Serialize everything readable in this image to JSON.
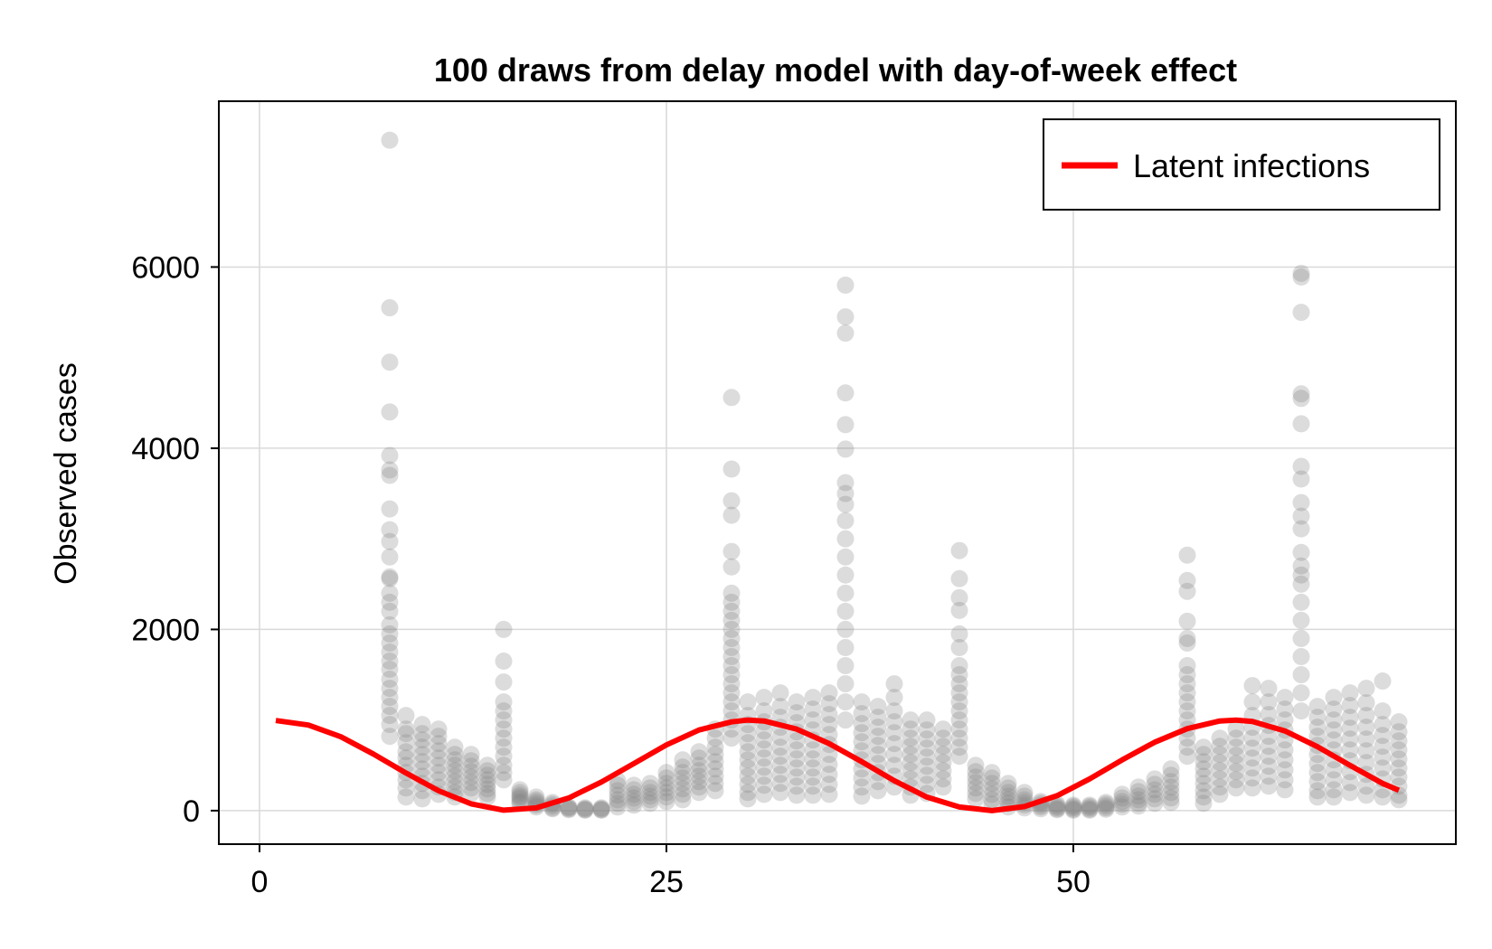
{
  "chart_data": {
    "type": "scatter",
    "title": "100 draws from delay model with day-of-week effect",
    "xlabel": "",
    "ylabel": "Observed cases",
    "xlim": [
      -2.5,
      73.5
    ],
    "ylim": [
      -370,
      7830
    ],
    "xticks": [
      0,
      25,
      50
    ],
    "yticks": [
      0,
      2000,
      4000,
      6000
    ],
    "xtick_labels": [
      "0",
      "25",
      "50"
    ],
    "ytick_labels": [
      "0",
      "2000",
      "4000",
      "6000"
    ],
    "grid": true,
    "legend": {
      "position": "top-right",
      "entries": [
        "Latent infections"
      ]
    },
    "colors": {
      "draws": "#808080",
      "latent": "#ff0000",
      "grid": "#d9d9d9",
      "frame": "#000000"
    },
    "series": [
      {
        "name": "Latent infections",
        "kind": "line",
        "x": [
          1,
          3,
          5,
          7,
          9,
          11,
          13,
          15,
          17,
          19,
          21,
          23,
          25,
          27,
          29,
          30,
          31,
          33,
          35,
          37,
          39,
          41,
          43,
          45,
          47,
          49,
          51,
          53,
          55,
          57,
          59,
          60,
          61,
          63,
          65,
          67,
          69,
          70
        ],
        "y": [
          995,
          945,
          815,
          625,
          415,
          220,
          75,
          5,
          30,
          140,
          315,
          520,
          725,
          890,
          980,
          1000,
          990,
          900,
          740,
          540,
          330,
          150,
          40,
          0,
          45,
          165,
          350,
          560,
          755,
          905,
          990,
          1000,
          985,
          880,
          705,
          500,
          300,
          225
        ]
      },
      {
        "kind": "scatter",
        "per_day": [
          {
            "day": 8,
            "values": [
              7400,
              5550,
              4950,
              4400,
              3920,
              3760,
              3700,
              3330,
              3100,
              2970,
              2800,
              2580,
              2560,
              2400,
              2300,
              2200,
              2050,
              1950,
              1850,
              1750,
              1650,
              1560,
              1450,
              1350,
              1250,
              1150,
              1050,
              950,
              820
            ]
          },
          {
            "day": 9,
            "values": [
              1050,
              900,
              850,
              750,
              650,
              580,
              500,
              420,
              340,
              250,
              150
            ]
          },
          {
            "day": 10,
            "values": [
              950,
              850,
              780,
              700,
              620,
              540,
              460,
              380,
              300,
              220,
              130
            ]
          },
          {
            "day": 11,
            "values": [
              900,
              820,
              740,
              660,
              580,
              500,
              420,
              340,
              260,
              180
            ]
          },
          {
            "day": 12,
            "values": [
              700,
              620,
              560,
              500,
              440,
              380,
              320,
              260,
              200,
              150
            ]
          },
          {
            "day": 13,
            "values": [
              620,
              550,
              490,
              430,
              370,
              310,
              250,
              190
            ]
          },
          {
            "day": 14,
            "values": [
              500,
              440,
              390,
              340,
              290,
              240,
              190,
              150
            ]
          },
          {
            "day": 15,
            "values": [
              2000,
              1650,
              1420,
              1200,
              1100,
              1000,
              900,
              800,
              700,
              600,
              500,
              420,
              340
            ]
          },
          {
            "day": 16,
            "values": [
              230,
              200,
              170,
              150,
              130,
              100,
              80
            ]
          },
          {
            "day": 17,
            "values": [
              150,
              120,
              100,
              80,
              60,
              40
            ]
          },
          {
            "day": 18,
            "values": [
              90,
              70,
              50,
              30,
              20
            ]
          },
          {
            "day": 19,
            "values": [
              40,
              30,
              20,
              10
            ]
          },
          {
            "day": 20,
            "values": [
              30,
              20,
              10,
              5
            ]
          },
          {
            "day": 21,
            "values": [
              30,
              20,
              10,
              5
            ]
          },
          {
            "day": 22,
            "values": [
              330,
              280,
              220,
              170,
              120,
              80,
              40
            ]
          },
          {
            "day": 23,
            "values": [
              280,
              230,
              180,
              140,
              100,
              60
            ]
          },
          {
            "day": 24,
            "values": [
              300,
              250,
              200,
              160,
              120,
              80
            ]
          },
          {
            "day": 25,
            "values": [
              420,
              360,
              300,
              250,
              200,
              150,
              100
            ]
          },
          {
            "day": 26,
            "values": [
              560,
              480,
              420,
              360,
              300,
              240,
              180,
              120
            ]
          },
          {
            "day": 27,
            "values": [
              650,
              580,
              500,
              440,
              380,
              320,
              260,
              200
            ]
          },
          {
            "day": 28,
            "values": [
              900,
              800,
              700,
              620,
              540,
              460,
              380,
              300,
              220
            ]
          },
          {
            "day": 29,
            "values": [
              4560,
              3770,
              3420,
              3260,
              2860,
              2690,
              2400,
              2300,
              2200,
              2100,
              2000,
              1900,
              1800,
              1700,
              1600,
              1500,
              1400,
              1300,
              1200,
              1100,
              1000,
              900,
              800
            ]
          },
          {
            "day": 30,
            "values": [
              1200,
              1050,
              950,
              850,
              750,
              650,
              560,
              470,
              380,
              290,
              200,
              130
            ]
          },
          {
            "day": 31,
            "values": [
              1250,
              1100,
              980,
              880,
              780,
              680,
              580,
              480,
              380,
              280,
              180
            ]
          },
          {
            "day": 32,
            "values": [
              1300,
              1150,
              1030,
              920,
              810,
              700,
              600,
              500,
              400,
              300,
              200
            ]
          },
          {
            "day": 33,
            "values": [
              1200,
              1080,
              970,
              870,
              770,
              670,
              570,
              470,
              370,
              270,
              170
            ]
          },
          {
            "day": 34,
            "values": [
              1250,
              1120,
              1000,
              890,
              780,
              670,
              570,
              470,
              370,
              270,
              170
            ]
          },
          {
            "day": 35,
            "values": [
              1300,
              1180,
              1060,
              950,
              840,
              730,
              620,
              510,
              400,
              290,
              180
            ]
          },
          {
            "day": 36,
            "values": [
              5800,
              5450,
              5270,
              4610,
              4260,
              3990,
              3620,
              3500,
              3380,
              3200,
              3000,
              2800,
              2600,
              2400,
              2200,
              2000,
              1800,
              1600,
              1400,
              1200,
              1000
            ]
          },
          {
            "day": 37,
            "values": [
              1200,
              1070,
              960,
              860,
              760,
              660,
              560,
              460,
              360,
              260,
              160
            ]
          },
          {
            "day": 38,
            "values": [
              1150,
              1030,
              920,
              820,
              720,
              620,
              520,
              420,
              320,
              220
            ]
          },
          {
            "day": 39,
            "values": [
              1400,
              1250,
              1100,
              980,
              860,
              740,
              620,
              500,
              380,
              260
            ]
          },
          {
            "day": 40,
            "values": [
              1000,
              900,
              800,
              710,
              620,
              530,
              440,
              350,
              260,
              170
            ]
          },
          {
            "day": 41,
            "values": [
              1000,
              890,
              790,
              690,
              590,
              490,
              390,
              290,
              190
            ]
          },
          {
            "day": 42,
            "values": [
              900,
              800,
              710,
              620,
              530,
              440,
              350,
              260
            ]
          },
          {
            "day": 43,
            "values": [
              2870,
              2560,
              2350,
              2210,
              1950,
              1800,
              1600,
              1500,
              1400,
              1300,
              1200,
              1100,
              1000,
              900,
              800,
              700,
              600
            ]
          },
          {
            "day": 44,
            "values": [
              500,
              430,
              370,
              310,
              250,
              190,
              130
            ]
          },
          {
            "day": 45,
            "values": [
              420,
              360,
              300,
              240,
              180,
              120,
              70
            ]
          },
          {
            "day": 46,
            "values": [
              300,
              250,
              200,
              160,
              120,
              80,
              40
            ]
          },
          {
            "day": 47,
            "values": [
              200,
              160,
              120,
              90,
              60,
              30
            ]
          },
          {
            "day": 48,
            "values": [
              100,
              80,
              60,
              40,
              20
            ]
          },
          {
            "day": 49,
            "values": [
              70,
              50,
              35,
              20,
              10
            ]
          },
          {
            "day": 50,
            "values": [
              60,
              45,
              30,
              15,
              5
            ]
          },
          {
            "day": 51,
            "values": [
              60,
              45,
              30,
              15,
              5
            ]
          },
          {
            "day": 52,
            "values": [
              90,
              70,
              50,
              30,
              15
            ]
          },
          {
            "day": 53,
            "values": [
              180,
              140,
              100,
              70,
              40
            ]
          },
          {
            "day": 54,
            "values": [
              260,
              210,
              160,
              120,
              80,
              50
            ]
          },
          {
            "day": 55,
            "values": [
              350,
              290,
              230,
              180,
              130,
              80
            ]
          },
          {
            "day": 56,
            "values": [
              460,
              390,
              320,
              260,
              200,
              140,
              90
            ]
          },
          {
            "day": 57,
            "values": [
              2820,
              2540,
              2420,
              2090,
              1900,
              1850,
              1600,
              1500,
              1400,
              1300,
              1200,
              1100,
              1000,
              900,
              800,
              700,
              600
            ]
          },
          {
            "day": 58,
            "values": [
              700,
              620,
              540,
              460,
              380,
              300,
              220,
              150,
              80
            ]
          },
          {
            "day": 59,
            "values": [
              800,
              710,
              620,
              530,
              440,
              350,
              260,
              180
            ]
          },
          {
            "day": 60,
            "values": [
              900,
              800,
              700,
              610,
              520,
              430,
              340,
              250
            ]
          },
          {
            "day": 61,
            "values": [
              1380,
              1200,
              1050,
              920,
              800,
              690,
              580,
              470,
              360,
              250
            ]
          },
          {
            "day": 62,
            "values": [
              1350,
              1200,
              1060,
              940,
              820,
              710,
              600,
              490,
              380,
              270
            ]
          },
          {
            "day": 63,
            "values": [
              1250,
              1120,
              1000,
              890,
              780,
              670,
              560,
              450,
              340,
              230
            ]
          },
          {
            "day": 64,
            "values": [
              5930,
              5890,
              5500,
              4600,
              4550,
              4270,
              3800,
              3660,
              3400,
              3250,
              3110,
              2850,
              2700,
              2600,
              2500,
              2300,
              2100,
              1900,
              1700,
              1500,
              1300,
              1100
            ]
          },
          {
            "day": 65,
            "values": [
              1150,
              1030,
              920,
              820,
              720,
              620,
              520,
              420,
              320,
              220,
              150
            ]
          },
          {
            "day": 66,
            "values": [
              1250,
              1120,
              1000,
              890,
              780,
              670,
              560,
              450,
              340,
              230,
              150
            ]
          },
          {
            "day": 67,
            "values": [
              1300,
              1160,
              1030,
              910,
              790,
              670,
              550,
              430,
              310,
              200
            ]
          },
          {
            "day": 68,
            "values": [
              1350,
              1190,
              1050,
              920,
              790,
              660,
              530,
              400,
              270,
              170
            ]
          },
          {
            "day": 69,
            "values": [
              1430,
              1100,
              950,
              830,
              710,
              590,
              470,
              350,
              230,
              150
            ]
          },
          {
            "day": 70,
            "values": [
              980,
              870,
              770,
              670,
              570,
              470,
              370,
              270,
              170,
              120
            ]
          }
        ]
      }
    ]
  }
}
